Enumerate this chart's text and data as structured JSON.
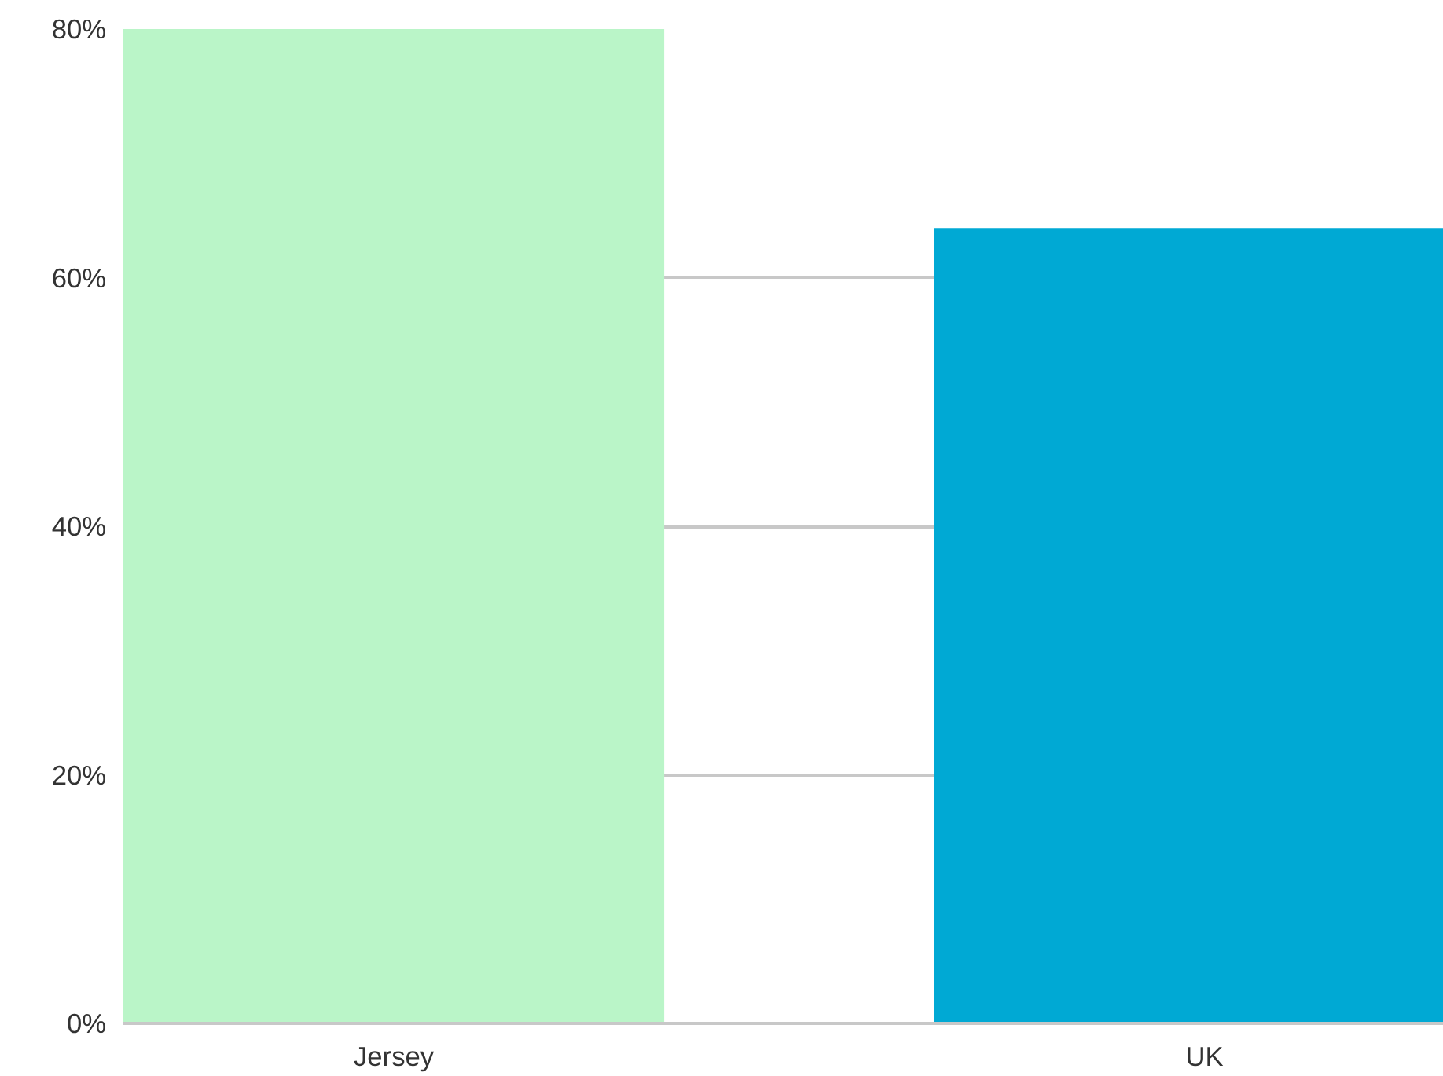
{
  "chart_data": {
    "type": "bar",
    "categories": [
      "Jersey",
      "UK"
    ],
    "colors": [
      "#baf5c8",
      "#00a9d4"
    ],
    "values": [
      80,
      64
    ],
    "ylim": [
      0,
      80
    ],
    "yticks": [
      {
        "value": 0,
        "label": "0%"
      },
      {
        "value": 20,
        "label": "20%"
      },
      {
        "value": 40,
        "label": "40%"
      },
      {
        "value": 60,
        "label": "60%"
      },
      {
        "value": 80,
        "label": "80%"
      }
    ],
    "grid": "y"
  }
}
